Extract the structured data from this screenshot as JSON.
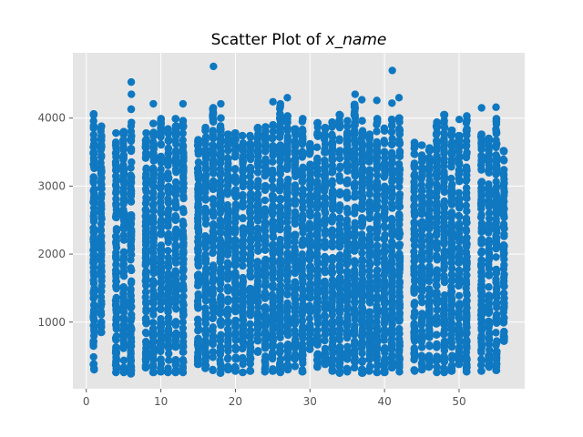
{
  "chart_data": {
    "type": "scatter",
    "title": "Scatter Plot of x_name",
    "title_parts": {
      "prefix": "Scatter Plot of ",
      "variable": "x_name"
    },
    "xlabel": "",
    "ylabel": "",
    "xlim": [
      -1.8,
      58.8
    ],
    "ylim": [
      20,
      4960
    ],
    "x_ticks": [
      {
        "value": 0,
        "label": "0"
      },
      {
        "value": 10,
        "label": "10"
      },
      {
        "value": 20,
        "label": "20"
      },
      {
        "value": 30,
        "label": "30"
      },
      {
        "value": 40,
        "label": "40"
      },
      {
        "value": 50,
        "label": "50"
      }
    ],
    "y_ticks": [
      {
        "value": 1000,
        "label": "1000"
      },
      {
        "value": 2000,
        "label": "2000"
      },
      {
        "value": 3000,
        "label": "3000"
      },
      {
        "value": 4000,
        "label": "4000"
      }
    ],
    "grid": true,
    "legend": "none",
    "colors": {
      "marker": "#0f78c1",
      "plot_background": "#e5e5e5",
      "grid": "#ffffff",
      "tick_text": "#555555",
      "title": "#000000"
    },
    "series": [
      {
        "points_by_x": [
          {
            "x": 1,
            "y_min": 300,
            "y_max": 4060,
            "outliers": []
          },
          {
            "x": 2,
            "y_min": 850,
            "y_max": 3880,
            "outliers": []
          },
          {
            "x": 4,
            "y_min": 260,
            "y_max": 3780,
            "outliers": []
          },
          {
            "x": 5,
            "y_min": 260,
            "y_max": 3800,
            "outliers": []
          },
          {
            "x": 6,
            "y_min": 240,
            "y_max": 4130,
            "outliers": [
              4350,
              4530
            ]
          },
          {
            "x": 8,
            "y_min": 330,
            "y_max": 3780,
            "outliers": []
          },
          {
            "x": 9,
            "y_min": 260,
            "y_max": 3920,
            "outliers": [
              4210
            ]
          },
          {
            "x": 10,
            "y_min": 270,
            "y_max": 3990,
            "outliers": []
          },
          {
            "x": 11,
            "y_min": 260,
            "y_max": 3840,
            "outliers": []
          },
          {
            "x": 12,
            "y_min": 260,
            "y_max": 3990,
            "outliers": []
          },
          {
            "x": 13,
            "y_min": 260,
            "y_max": 3960,
            "outliers": [
              4210
            ]
          },
          {
            "x": 15,
            "y_min": 380,
            "y_max": 3680,
            "outliers": []
          },
          {
            "x": 16,
            "y_min": 320,
            "y_max": 3860,
            "outliers": []
          },
          {
            "x": 17,
            "y_min": 290,
            "y_max": 4150,
            "outliers": [
              4760
            ]
          },
          {
            "x": 18,
            "y_min": 250,
            "y_max": 4000,
            "outliers": [
              4210
            ]
          },
          {
            "x": 19,
            "y_min": 300,
            "y_max": 3760,
            "outliers": []
          },
          {
            "x": 20,
            "y_min": 280,
            "y_max": 3780,
            "outliers": []
          },
          {
            "x": 21,
            "y_min": 260,
            "y_max": 3740,
            "outliers": []
          },
          {
            "x": 22,
            "y_min": 280,
            "y_max": 3740,
            "outliers": []
          },
          {
            "x": 23,
            "y_min": 560,
            "y_max": 3860,
            "outliers": []
          },
          {
            "x": 24,
            "y_min": 270,
            "y_max": 3870,
            "outliers": []
          },
          {
            "x": 25,
            "y_min": 280,
            "y_max": 3900,
            "outliers": [
              4240
            ]
          },
          {
            "x": 26,
            "y_min": 260,
            "y_max": 4170,
            "outliers": [
              4210
            ]
          },
          {
            "x": 27,
            "y_min": 300,
            "y_max": 4030,
            "outliers": [
              4300
            ]
          },
          {
            "x": 28,
            "y_min": 350,
            "y_max": 3840,
            "outliers": []
          },
          {
            "x": 29,
            "y_min": 270,
            "y_max": 3990,
            "outliers": []
          },
          {
            "x": 30,
            "y_min": 600,
            "y_max": 3620,
            "outliers": []
          },
          {
            "x": 31,
            "y_min": 340,
            "y_max": 3930,
            "outliers": []
          },
          {
            "x": 32,
            "y_min": 380,
            "y_max": 3860,
            "outliers": []
          },
          {
            "x": 33,
            "y_min": 280,
            "y_max": 3940,
            "outliers": []
          },
          {
            "x": 34,
            "y_min": 250,
            "y_max": 4050,
            "outliers": []
          },
          {
            "x": 35,
            "y_min": 270,
            "y_max": 3960,
            "outliers": []
          },
          {
            "x": 36,
            "y_min": 330,
            "y_max": 4200,
            "outliers": [
              4350
            ]
          },
          {
            "x": 37,
            "y_min": 250,
            "y_max": 3960,
            "outliers": [
              4270
            ]
          },
          {
            "x": 38,
            "y_min": 280,
            "y_max": 3760,
            "outliers": []
          },
          {
            "x": 39,
            "y_min": 260,
            "y_max": 3990,
            "outliers": [
              4260
            ]
          },
          {
            "x": 40,
            "y_min": 260,
            "y_max": 3850,
            "outliers": []
          },
          {
            "x": 41,
            "y_min": 330,
            "y_max": 3980,
            "outliers": [
              4220,
              4700
            ]
          },
          {
            "x": 42,
            "y_min": 270,
            "y_max": 4000,
            "outliers": [
              4300
            ]
          },
          {
            "x": 44,
            "y_min": 280,
            "y_max": 3640,
            "outliers": []
          },
          {
            "x": 45,
            "y_min": 300,
            "y_max": 3600,
            "outliers": []
          },
          {
            "x": 46,
            "y_min": 340,
            "y_max": 3560,
            "outliers": []
          },
          {
            "x": 47,
            "y_min": 260,
            "y_max": 3940,
            "outliers": []
          },
          {
            "x": 48,
            "y_min": 260,
            "y_max": 4050,
            "outliers": []
          },
          {
            "x": 49,
            "y_min": 280,
            "y_max": 3820,
            "outliers": []
          },
          {
            "x": 50,
            "y_min": 380,
            "y_max": 3740,
            "outliers": [
              3980
            ]
          },
          {
            "x": 51,
            "y_min": 270,
            "y_max": 4030,
            "outliers": []
          },
          {
            "x": 53,
            "y_min": 280,
            "y_max": 3760,
            "outliers": [
              4150
            ]
          },
          {
            "x": 54,
            "y_min": 340,
            "y_max": 3700,
            "outliers": []
          },
          {
            "x": 55,
            "y_min": 290,
            "y_max": 3990,
            "outliers": [
              4160
            ]
          },
          {
            "x": 56,
            "y_min": 720,
            "y_max": 3520,
            "outliers": []
          }
        ]
      }
    ]
  }
}
